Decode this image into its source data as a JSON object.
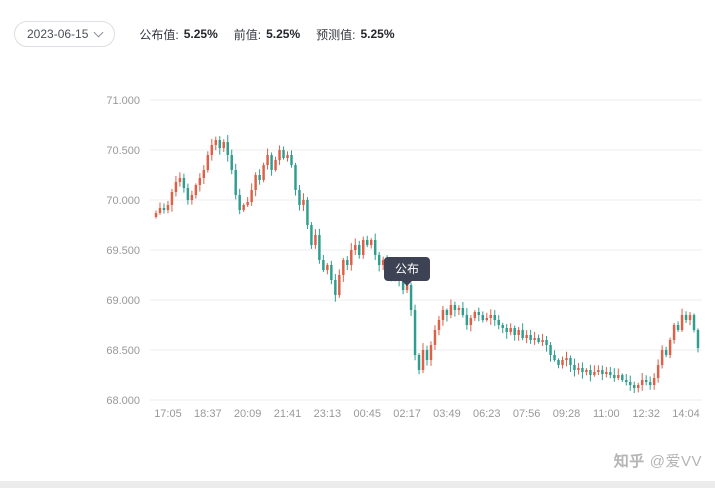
{
  "header": {
    "date_picker": {
      "value": "2023-06-15"
    },
    "stats": [
      {
        "label": "公布值:",
        "value": "5.25%"
      },
      {
        "label": "前值:",
        "value": "5.25%"
      },
      {
        "label": "预测值:",
        "value": "5.25%"
      }
    ]
  },
  "chart_data": {
    "type": "candlestick",
    "title": "",
    "xlabel": "",
    "ylabel": "",
    "x_ticks": [
      "17:05",
      "18:37",
      "20:09",
      "21:41",
      "23:13",
      "00:45",
      "02:17",
      "03:49",
      "06:23",
      "07:56",
      "09:28",
      "11:00",
      "12:32",
      "14:04"
    ],
    "x_tick_start_index": 3,
    "x_tick_step": 10,
    "y_ticks": [
      "68.000",
      "68.500",
      "69.000",
      "69.500",
      "70.000",
      "70.500",
      "71.000"
    ],
    "ylim": [
      68.0,
      71.0
    ],
    "grid": true,
    "legend": false,
    "colors": {
      "up": "#dd6048",
      "down": "#2f9e8f",
      "grid": "#ececec",
      "axis_text": "#999999",
      "tooltip_bg": "#3d4254"
    },
    "annotation": {
      "label": "公布",
      "x_index": 63,
      "y_value": 69.19
    },
    "close_values": [
      69.87,
      69.92,
      69.9,
      69.95,
      70.08,
      70.18,
      70.22,
      70.12,
      70.0,
      70.05,
      70.15,
      70.22,
      70.3,
      70.45,
      70.55,
      70.6,
      70.52,
      70.58,
      70.45,
      70.3,
      70.05,
      69.9,
      69.95,
      69.98,
      70.1,
      70.25,
      70.2,
      70.35,
      70.45,
      70.3,
      70.4,
      70.5,
      70.42,
      70.45,
      70.35,
      70.1,
      69.95,
      70.0,
      69.75,
      69.55,
      69.65,
      69.4,
      69.3,
      69.35,
      69.2,
      69.05,
      69.25,
      69.4,
      69.35,
      69.5,
      69.55,
      69.45,
      69.6,
      69.55,
      69.6,
      69.45,
      69.35,
      69.4,
      69.3,
      69.25,
      69.3,
      69.2,
      69.1,
      69.15,
      68.9,
      68.45,
      68.3,
      68.5,
      68.4,
      68.55,
      68.7,
      68.8,
      68.9,
      68.85,
      68.95,
      68.9,
      68.92,
      68.85,
      68.75,
      68.82,
      68.88,
      68.85,
      68.8,
      68.82,
      68.85,
      68.8,
      68.75,
      68.72,
      68.68,
      68.72,
      68.65,
      68.7,
      68.62,
      68.65,
      68.6,
      68.62,
      68.58,
      68.6,
      68.55,
      68.45,
      68.4,
      68.35,
      68.4,
      68.42,
      68.35,
      68.3,
      68.32,
      68.28,
      68.3,
      68.25,
      68.28,
      68.3,
      68.26,
      68.28,
      68.25,
      68.22,
      68.25,
      68.2,
      68.18,
      68.15,
      68.12,
      68.15,
      68.2,
      68.18,
      68.15,
      68.22,
      68.35,
      68.5,
      68.45,
      68.6,
      68.75,
      68.7,
      68.85,
      68.8,
      68.85,
      68.7,
      68.52
    ]
  },
  "watermark": {
    "brand": "知乎",
    "author": "@爱VV"
  }
}
